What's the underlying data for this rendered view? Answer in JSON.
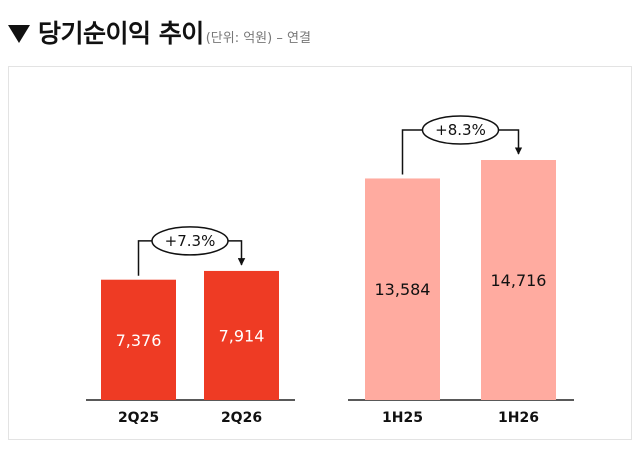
{
  "header": {
    "title": "당기순이익 추이",
    "unit_note": "(단위: 억원) – 연결"
  },
  "colors": {
    "quarter_bar": "#ee3b24",
    "half_bar": "#ffaba0",
    "quarter_label": "#ffffff",
    "half_label": "#111111"
  },
  "chart_data": [
    {
      "type": "bar",
      "categories": [
        "2Q25",
        "2Q26"
      ],
      "values": [
        7376,
        7914
      ],
      "labels": [
        "7,376",
        "7,914"
      ],
      "growth_label": "+7.3%"
    },
    {
      "type": "bar",
      "categories": [
        "1H25",
        "1H26"
      ],
      "values": [
        13584,
        14716
      ],
      "labels": [
        "13,584",
        "14,716"
      ],
      "growth_label": "+8.3%"
    }
  ]
}
